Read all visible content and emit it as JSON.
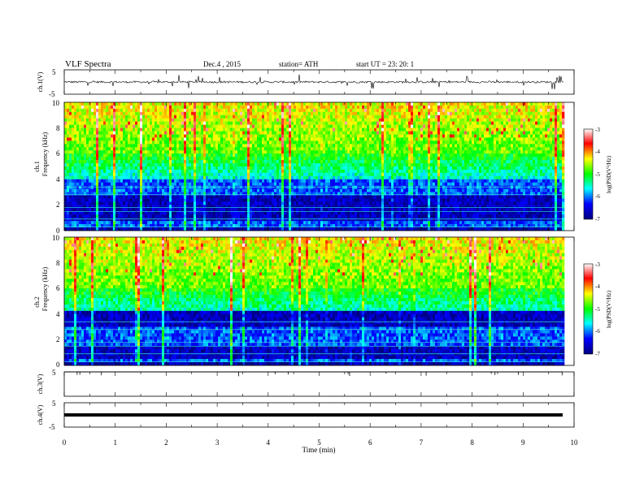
{
  "header": {
    "title": "VLF Spectra",
    "date": "Dec.4  , 2015",
    "station": "station= ATH",
    "start_ut": "start  UT  =    23: 20: 1"
  },
  "chart_data": [
    {
      "type": "line",
      "name": "ch1-waveform",
      "ylabel": "ch.1(V)",
      "ylim": [
        -5,
        5
      ],
      "yticks": [
        "5",
        "-5"
      ],
      "xlim": [
        0,
        10
      ]
    },
    {
      "type": "heatmap",
      "name": "ch1-spectrogram",
      "ylabel": "Frequency  (kHz)",
      "channel_label": "ch.1",
      "ylim": [
        0,
        10
      ],
      "yticks": [
        "0",
        "2",
        "4",
        "6",
        "8",
        "10"
      ],
      "colorbar": {
        "label": "log(PSD(V²/Hz)",
        "range": [
          -7,
          -3
        ],
        "ticks": [
          "-3",
          "-4",
          "-5",
          "-6",
          "-7"
        ],
        "colors": [
          "#000080",
          "#0000ff",
          "#00ffff",
          "#00ff00",
          "#ffff00",
          "#ff0000",
          "#ffffff"
        ]
      }
    },
    {
      "type": "heatmap",
      "name": "ch2-spectrogram",
      "ylabel": "Frequency  (kHz)",
      "channel_label": "ch.2",
      "ylim": [
        0,
        10
      ],
      "yticks": [
        "0",
        "2",
        "4",
        "6",
        "8",
        "10"
      ],
      "colorbar": {
        "label": "log(PSD(V²/Hz)",
        "range": [
          -7,
          -3
        ],
        "ticks": [
          "-3",
          "-4",
          "-5",
          "-6",
          "-7"
        ],
        "colors": [
          "#000080",
          "#0000ff",
          "#00ffff",
          "#00ff00",
          "#ffff00",
          "#ff0000",
          "#ffffff"
        ]
      }
    },
    {
      "type": "line",
      "name": "ch3-waveform",
      "ylabel": "ch.3(V)",
      "ylim": [
        -5,
        5
      ],
      "yticks": [
        "5"
      ],
      "xlim": [
        0,
        10
      ]
    },
    {
      "type": "line",
      "name": "ch4-waveform",
      "ylabel": "ch.4(V)",
      "ylim": [
        -5,
        5
      ],
      "yticks": [
        "5",
        "-5"
      ],
      "xlim": [
        0,
        10
      ]
    }
  ],
  "xaxis": {
    "label": "Time  (min)",
    "ticks": [
      "0",
      "1",
      "2",
      "3",
      "4",
      "5",
      "6",
      "7",
      "8",
      "9",
      "10"
    ],
    "data_end": 9.8
  }
}
